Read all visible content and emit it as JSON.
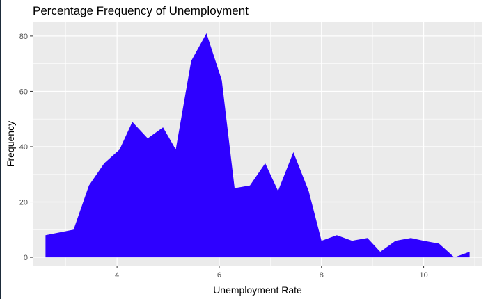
{
  "chart_data": {
    "type": "area",
    "title": "Percentage Frequency of Unemployment",
    "xlabel": "Unemployment Rate",
    "ylabel": "Frequency",
    "xlim": [
      2.35,
      11.15
    ],
    "ylim": [
      -3,
      85
    ],
    "x_ticks": [
      4,
      6,
      8,
      10
    ],
    "y_ticks": [
      0,
      20,
      40,
      60,
      80
    ],
    "grid": true,
    "legend": "none",
    "series": [
      {
        "x": [
          2.6,
          3.15,
          3.45,
          3.75,
          4.05,
          4.3,
          4.6,
          4.9,
          5.15,
          5.45,
          5.75,
          6.05,
          6.3,
          6.6,
          6.9,
          7.15,
          7.45,
          7.75,
          8.0,
          8.3,
          8.6,
          8.9,
          9.15,
          9.45,
          9.75,
          10.0,
          10.3,
          10.6,
          10.9
        ],
        "y": [
          8,
          10,
          26,
          34,
          39,
          49,
          43,
          47,
          39,
          71,
          81,
          64,
          25,
          26,
          34,
          24,
          38,
          24,
          6,
          8,
          6,
          7,
          2,
          6,
          7,
          6,
          5,
          0,
          2
        ]
      }
    ],
    "colors": {
      "fill": "#2e00ff",
      "panel": "#ebebeb",
      "grid_major": "#ffffff",
      "tick_text": "#4d4d4d"
    }
  }
}
